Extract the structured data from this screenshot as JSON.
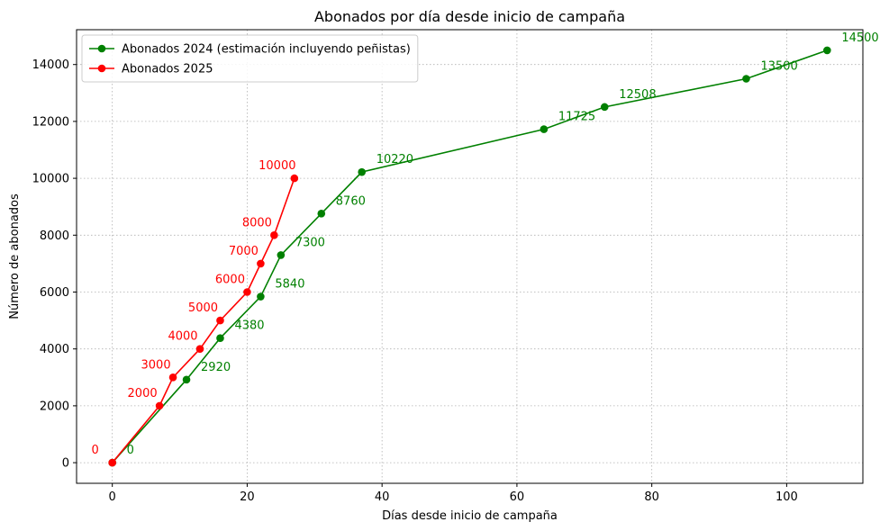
{
  "chart_data": {
    "type": "line",
    "title": "Abonados por día desde inicio de campaña",
    "xlabel": "Días desde inicio de campaña",
    "ylabel": "Número de abonados",
    "xlim": [
      -5.3,
      111.3
    ],
    "ylim": [
      -725,
      15225
    ],
    "xticks": [
      0,
      20,
      40,
      60,
      80,
      100
    ],
    "yticks": [
      0,
      2000,
      4000,
      6000,
      8000,
      10000,
      12000,
      14000
    ],
    "grid": true,
    "legend_position": "top-left",
    "series": [
      {
        "name": "Abonados 2024 (estimación incluyendo peñistas)",
        "color": "#008000",
        "label_side": "right",
        "x": [
          0,
          11,
          16,
          22,
          25,
          31,
          37,
          64,
          73,
          94,
          106
        ],
        "y": [
          0,
          2920,
          4380,
          5840,
          7300,
          8760,
          10220,
          11725,
          12508,
          13500,
          14500
        ]
      },
      {
        "name": "Abonados 2025",
        "color": "#ff0000",
        "label_side": "left",
        "x": [
          0,
          7,
          9,
          13,
          16,
          20,
          22,
          24,
          27
        ],
        "y": [
          0,
          2000,
          3000,
          4000,
          5000,
          6000,
          7000,
          8000,
          10000
        ]
      }
    ]
  }
}
